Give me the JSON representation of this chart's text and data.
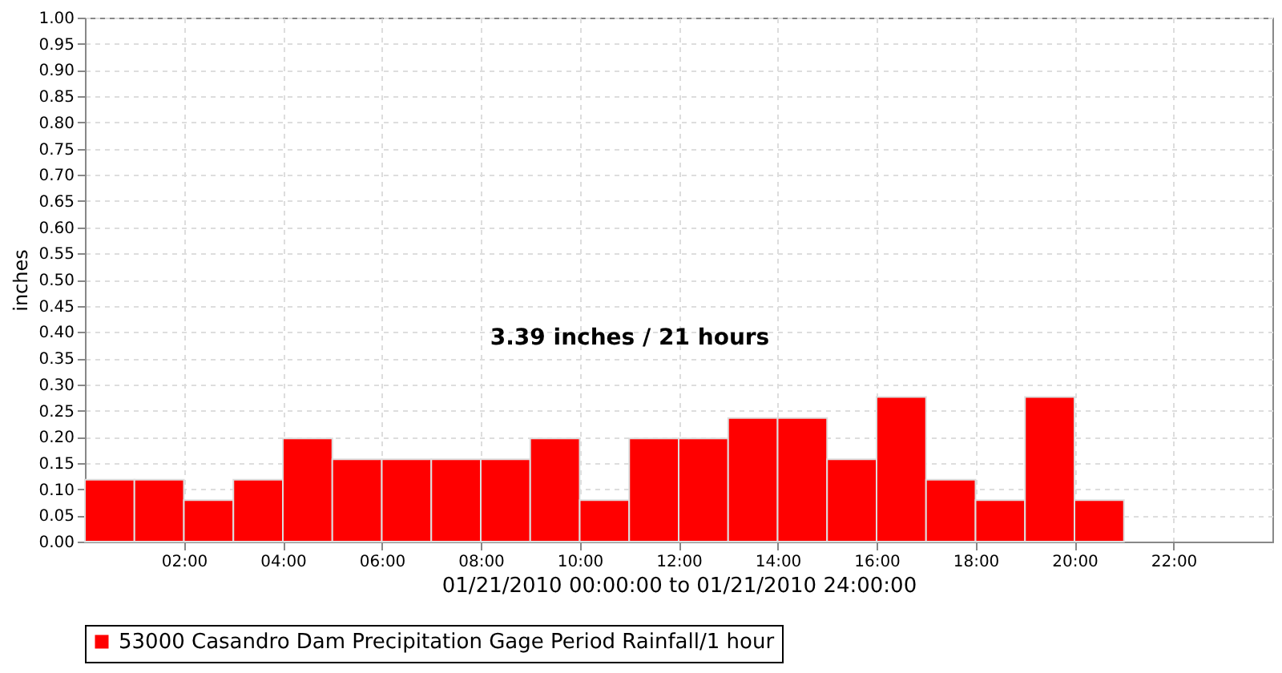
{
  "chart_data": {
    "type": "histogram",
    "xlabel": "01/21/2010 00:00:00 to 01/21/2010 24:00:00",
    "ylabel": "inches",
    "bins": [
      0,
      1,
      2,
      3,
      4,
      5,
      6,
      7,
      8,
      9,
      10,
      11,
      12,
      13,
      14,
      15,
      16,
      17,
      18,
      19,
      20,
      21
    ],
    "series": [
      {
        "name": "53000 Casandro Dam Precipitation Gage Period Rainfall/1 hour",
        "color": "#ff0000",
        "values": [
          0.118,
          0.118,
          0.079,
          0.118,
          0.197,
          0.157,
          0.157,
          0.157,
          0.157,
          0.197,
          0.079,
          0.197,
          0.197,
          0.236,
          0.236,
          0.157,
          0.276,
          0.118,
          0.079,
          0.276,
          0.079
        ]
      }
    ],
    "xlim": [
      0,
      24
    ],
    "xticks": [
      {
        "value": 2,
        "label": "02:00"
      },
      {
        "value": 4,
        "label": "04:00"
      },
      {
        "value": 6,
        "label": "06:00"
      },
      {
        "value": 8,
        "label": "08:00"
      },
      {
        "value": 10,
        "label": "10:00"
      },
      {
        "value": 12,
        "label": "12:00"
      },
      {
        "value": 14,
        "label": "14:00"
      },
      {
        "value": 16,
        "label": "16:00"
      },
      {
        "value": 18,
        "label": "18:00"
      },
      {
        "value": 20,
        "label": "20:00"
      },
      {
        "value": 22,
        "label": "22:00"
      }
    ],
    "ylim": [
      0,
      1
    ],
    "yticks": [
      {
        "value": 0,
        "label": "0.00"
      },
      {
        "value": 0.05,
        "label": "0.05"
      },
      {
        "value": 0.1,
        "label": "0.10"
      },
      {
        "value": 0.15,
        "label": "0.15"
      },
      {
        "value": 0.2,
        "label": "0.20"
      },
      {
        "value": 0.25,
        "label": "0.25"
      },
      {
        "value": 0.3,
        "label": "0.30"
      },
      {
        "value": 0.35,
        "label": "0.35"
      },
      {
        "value": 0.4,
        "label": "0.40"
      },
      {
        "value": 0.45,
        "label": "0.45"
      },
      {
        "value": 0.5,
        "label": "0.50"
      },
      {
        "value": 0.55,
        "label": "0.55"
      },
      {
        "value": 0.6,
        "label": "0.60"
      },
      {
        "value": 0.65,
        "label": "0.65"
      },
      {
        "value": 0.7,
        "label": "0.70"
      },
      {
        "value": 0.75,
        "label": "0.75"
      },
      {
        "value": 0.8,
        "label": "0.80"
      },
      {
        "value": 0.85,
        "label": "0.85"
      },
      {
        "value": 0.9,
        "label": "0.90"
      },
      {
        "value": 0.95,
        "label": "0.95"
      },
      {
        "value": 1,
        "label": "1.00"
      }
    ],
    "annotations": [
      "3.39 inches / 21 hours"
    ],
    "grid": true,
    "legend": "bottom"
  }
}
